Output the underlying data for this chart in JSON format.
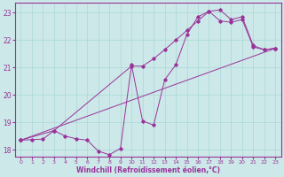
{
  "xlabel": "Windchill (Refroidissement éolien,°C)",
  "xlim": [
    -0.5,
    23.5
  ],
  "ylim": [
    17.75,
    23.35
  ],
  "yticks": [
    18,
    19,
    20,
    21,
    22,
    23
  ],
  "xticks": [
    0,
    1,
    2,
    3,
    4,
    5,
    6,
    7,
    8,
    9,
    10,
    11,
    12,
    13,
    14,
    15,
    16,
    17,
    18,
    19,
    20,
    21,
    22,
    23
  ],
  "bg_color": "#cce8e8",
  "grid_color": "#aad8d8",
  "line_color": "#993399",
  "line1_x": [
    0,
    1,
    2,
    3,
    4,
    5,
    6,
    7,
    8,
    9,
    10,
    11,
    12,
    13,
    14,
    15,
    16,
    17,
    18,
    19,
    20,
    21,
    22,
    23
  ],
  "line1_y": [
    18.35,
    18.37,
    18.39,
    18.7,
    18.5,
    18.4,
    18.35,
    17.95,
    17.82,
    18.05,
    21.1,
    19.05,
    18.9,
    20.55,
    21.1,
    22.2,
    22.85,
    23.05,
    23.1,
    22.75,
    22.85,
    21.8,
    21.65,
    21.7
  ],
  "line2_x": [
    0,
    3,
    10,
    11,
    12,
    13,
    14,
    15,
    16,
    17,
    18,
    19,
    20,
    21,
    22,
    23
  ],
  "line2_y": [
    18.35,
    18.7,
    21.05,
    21.05,
    21.32,
    21.65,
    22.0,
    22.35,
    22.7,
    23.05,
    22.7,
    22.65,
    22.75,
    21.75,
    21.65,
    21.7
  ],
  "line3_x": [
    0,
    23
  ],
  "line3_y": [
    18.35,
    21.7
  ]
}
